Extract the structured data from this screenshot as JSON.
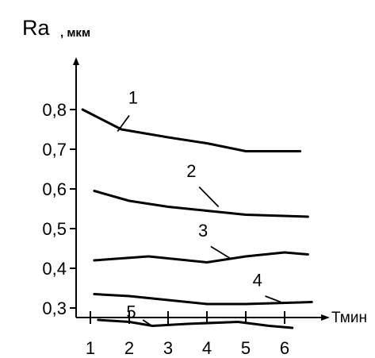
{
  "chart_data": {
    "type": "line",
    "ylabel_main": "Ra",
    "ylabel_unit": ", мкм",
    "xlabel": "Тмин",
    "xlim": [
      0.2,
      6.8
    ],
    "ylim": [
      0.2,
      0.88
    ],
    "x_ticks": [
      "1",
      "2",
      "3",
      "4",
      "5",
      "6"
    ],
    "y_ticks": [
      "0,3",
      "0,4",
      "0,5",
      "0,6",
      "0,7",
      "0,8"
    ],
    "grid": false,
    "legend": "none",
    "series": [
      {
        "name": "1",
        "x": [
          0.8,
          1.8,
          3.0,
          4.0,
          5.0,
          6.4
        ],
        "y": [
          0.8,
          0.75,
          0.73,
          0.715,
          0.695,
          0.695
        ]
      },
      {
        "name": "2",
        "x": [
          1.1,
          2.0,
          3.0,
          4.0,
          5.0,
          6.6
        ],
        "y": [
          0.595,
          0.57,
          0.555,
          0.545,
          0.535,
          0.53
        ]
      },
      {
        "name": "3",
        "x": [
          1.1,
          2.5,
          4.0,
          5.0,
          6.0,
          6.6
        ],
        "y": [
          0.42,
          0.43,
          0.415,
          0.43,
          0.44,
          0.435
        ]
      },
      {
        "name": "4",
        "x": [
          1.1,
          2.0,
          3.0,
          4.0,
          5.0,
          6.7
        ],
        "y": [
          0.335,
          0.33,
          0.32,
          0.31,
          0.31,
          0.315
        ]
      },
      {
        "name": "5",
        "x": [
          1.2,
          2.0,
          2.6,
          3.5,
          4.8,
          5.6,
          6.2
        ],
        "y": [
          0.27,
          0.265,
          0.255,
          0.26,
          0.265,
          0.255,
          0.25
        ]
      }
    ],
    "labels": [
      {
        "text": "1",
        "x": 2.1,
        "y": 0.815,
        "series": 0
      },
      {
        "text": "2",
        "x": 3.6,
        "y": 0.63,
        "series": 1
      },
      {
        "text": "3",
        "x": 3.9,
        "y": 0.48,
        "series": 2
      },
      {
        "text": "4",
        "x": 5.3,
        "y": 0.355,
        "series": 3
      },
      {
        "text": "5",
        "x": 2.05,
        "y": 0.275,
        "series": 4
      }
    ],
    "leaders": [
      {
        "from": [
          2.0,
          0.785
        ],
        "to": [
          1.7,
          0.745
        ]
      },
      {
        "from": [
          3.8,
          0.605
        ],
        "to": [
          4.3,
          0.555
        ]
      },
      {
        "from": [
          4.1,
          0.455
        ],
        "to": [
          4.6,
          0.425
        ]
      },
      {
        "from": [
          5.5,
          0.33
        ],
        "to": [
          5.9,
          0.315
        ]
      },
      {
        "from": [
          2.35,
          0.27
        ],
        "to": [
          2.55,
          0.257
        ]
      }
    ]
  }
}
